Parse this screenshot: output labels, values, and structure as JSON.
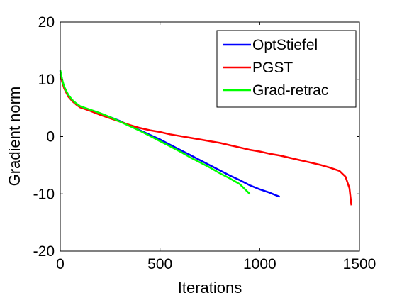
{
  "chart_data": {
    "type": "line",
    "title": "",
    "xlabel": "Iterations",
    "ylabel": "Gradient norm",
    "xlim": [
      0,
      1500
    ],
    "ylim": [
      -20,
      20
    ],
    "xticks": [
      0,
      500,
      1000,
      1500
    ],
    "yticks": [
      -20,
      -10,
      0,
      10,
      20
    ],
    "grid": false,
    "legend": "top-right",
    "series": [
      {
        "name": "OptStiefel",
        "color": "#0000ff",
        "x": [
          0,
          10,
          20,
          40,
          60,
          80,
          100,
          150,
          200,
          250,
          300,
          350,
          400,
          450,
          500,
          550,
          600,
          650,
          700,
          750,
          800,
          850,
          900,
          950,
          1000,
          1050,
          1100
        ],
        "y": [
          11.5,
          9.8,
          8.6,
          7.2,
          6.3,
          5.7,
          5.2,
          4.6,
          4.0,
          3.4,
          2.7,
          1.9,
          1.1,
          0.3,
          -0.5,
          -1.4,
          -2.3,
          -3.2,
          -4.1,
          -5.0,
          -5.9,
          -6.8,
          -7.6,
          -8.5,
          -9.2,
          -9.8,
          -10.5
        ]
      },
      {
        "name": "PGST",
        "color": "#ff0000",
        "x": [
          0,
          10,
          20,
          40,
          60,
          80,
          100,
          150,
          200,
          250,
          300,
          350,
          400,
          450,
          500,
          550,
          600,
          650,
          700,
          750,
          800,
          850,
          900,
          950,
          1000,
          1050,
          1100,
          1150,
          1200,
          1250,
          1300,
          1350,
          1400,
          1430,
          1450,
          1460
        ],
        "y": [
          11.0,
          9.5,
          8.4,
          7.0,
          6.2,
          5.6,
          5.1,
          4.5,
          3.8,
          3.2,
          2.6,
          2.0,
          1.5,
          1.1,
          0.8,
          0.4,
          0.1,
          -0.2,
          -0.5,
          -0.8,
          -1.1,
          -1.5,
          -1.9,
          -2.3,
          -2.6,
          -3.0,
          -3.3,
          -3.7,
          -4.1,
          -4.5,
          -4.9,
          -5.4,
          -6.0,
          -7.0,
          -9.0,
          -12.0
        ]
      },
      {
        "name": "Grad-retrac",
        "color": "#00ff00",
        "x": [
          0,
          10,
          20,
          40,
          60,
          80,
          100,
          150,
          200,
          250,
          300,
          350,
          400,
          450,
          500,
          550,
          600,
          650,
          700,
          750,
          800,
          850,
          900,
          950
        ],
        "y": [
          11.6,
          9.9,
          8.7,
          7.3,
          6.4,
          5.8,
          5.3,
          4.7,
          4.1,
          3.4,
          2.6,
          1.8,
          1.0,
          0.1,
          -0.8,
          -1.7,
          -2.6,
          -3.6,
          -4.5,
          -5.4,
          -6.4,
          -7.3,
          -8.3,
          -10.0
        ]
      }
    ]
  }
}
